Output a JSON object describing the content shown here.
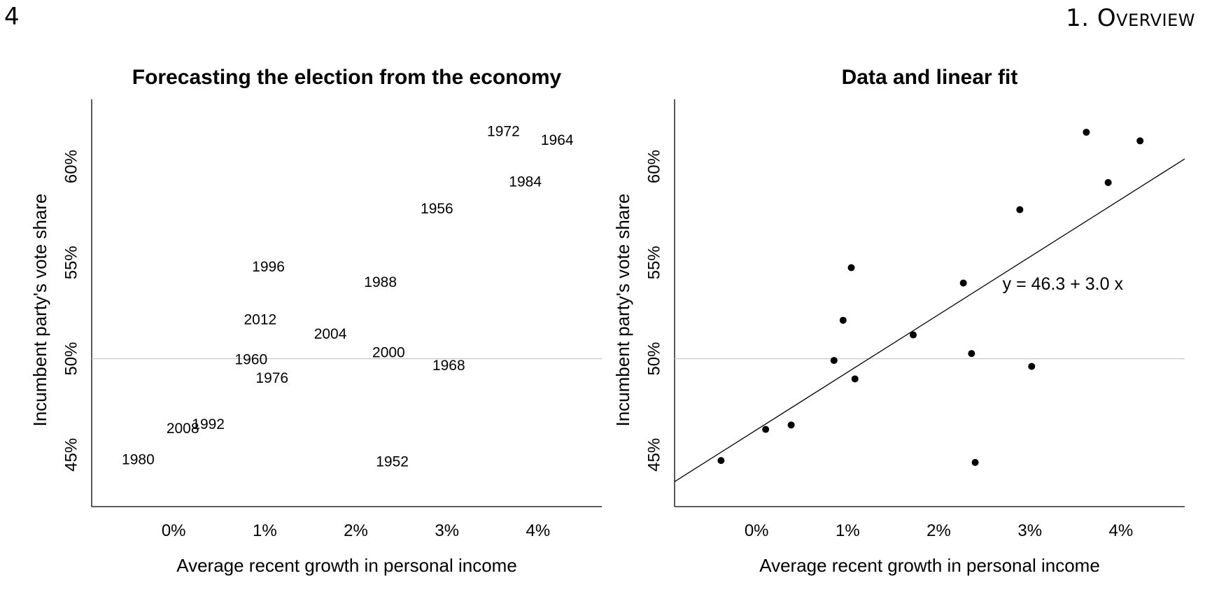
{
  "header": {
    "page_number": "4",
    "chapter": "1. Overview"
  },
  "chart_data": [
    {
      "type": "scatter",
      "title": "Forecasting the election from the economy",
      "xlabel": "Average recent growth in personal income",
      "ylabel": "Incumbent party's vote share",
      "xlim": [
        -0.9,
        4.7
      ],
      "ylim": [
        42.3,
        63.5
      ],
      "xticks": [
        0,
        1,
        2,
        3,
        4
      ],
      "xtick_labels": [
        "0%",
        "1%",
        "2%",
        "3%",
        "4%"
      ],
      "yticks": [
        45,
        50,
        55,
        60
      ],
      "ytick_labels": [
        "45%",
        "50%",
        "55%",
        "60%"
      ],
      "reference_line_y": 50,
      "marker": "year-label",
      "points": [
        {
          "label": "1952",
          "x": 2.4,
          "y": 44.6
        },
        {
          "label": "1956",
          "x": 2.89,
          "y": 57.76
        },
        {
          "label": "1960",
          "x": 0.85,
          "y": 49.91
        },
        {
          "label": "1964",
          "x": 4.21,
          "y": 61.34
        },
        {
          "label": "1968",
          "x": 3.02,
          "y": 49.6
        },
        {
          "label": "1972",
          "x": 3.62,
          "y": 61.79
        },
        {
          "label": "1976",
          "x": 1.08,
          "y": 48.95
        },
        {
          "label": "1980",
          "x": -0.39,
          "y": 44.7
        },
        {
          "label": "1984",
          "x": 3.86,
          "y": 59.17
        },
        {
          "label": "1988",
          "x": 2.27,
          "y": 53.94
        },
        {
          "label": "1992",
          "x": 0.38,
          "y": 46.55
        },
        {
          "label": "1996",
          "x": 1.04,
          "y": 54.74
        },
        {
          "label": "2000",
          "x": 2.36,
          "y": 50.27
        },
        {
          "label": "2004",
          "x": 1.72,
          "y": 51.24
        },
        {
          "label": "2008",
          "x": 0.1,
          "y": 46.32
        },
        {
          "label": "2012",
          "x": 0.95,
          "y": 52.0
        }
      ]
    },
    {
      "type": "scatter",
      "title": "Data and linear fit",
      "xlabel": "Average recent growth in personal income",
      "ylabel": "Incumbent party's vote share",
      "xlim": [
        -0.9,
        4.7
      ],
      "ylim": [
        42.3,
        63.5
      ],
      "xticks": [
        0,
        1,
        2,
        3,
        4
      ],
      "xtick_labels": [
        "0%",
        "1%",
        "2%",
        "3%",
        "4%"
      ],
      "yticks": [
        45,
        50,
        55,
        60
      ],
      "ytick_labels": [
        "45%",
        "50%",
        "55%",
        "60%"
      ],
      "reference_line_y": 50,
      "marker": "dot",
      "fit": {
        "intercept": 46.3,
        "slope": 3.0,
        "equation": "y = 46.3 + 3.0 x",
        "label_at": [
          2.7,
          53.6
        ]
      },
      "points": [
        {
          "x": 2.4,
          "y": 44.6
        },
        {
          "x": 2.89,
          "y": 57.76
        },
        {
          "x": 0.85,
          "y": 49.91
        },
        {
          "x": 4.21,
          "y": 61.34
        },
        {
          "x": 3.02,
          "y": 49.6
        },
        {
          "x": 3.62,
          "y": 61.79
        },
        {
          "x": 1.08,
          "y": 48.95
        },
        {
          "x": -0.39,
          "y": 44.7
        },
        {
          "x": 3.86,
          "y": 59.17
        },
        {
          "x": 2.27,
          "y": 53.94
        },
        {
          "x": 0.38,
          "y": 46.55
        },
        {
          "x": 1.04,
          "y": 54.74
        },
        {
          "x": 2.36,
          "y": 50.27
        },
        {
          "x": 1.72,
          "y": 51.24
        },
        {
          "x": 0.1,
          "y": 46.32
        },
        {
          "x": 0.95,
          "y": 52.0
        }
      ]
    }
  ]
}
